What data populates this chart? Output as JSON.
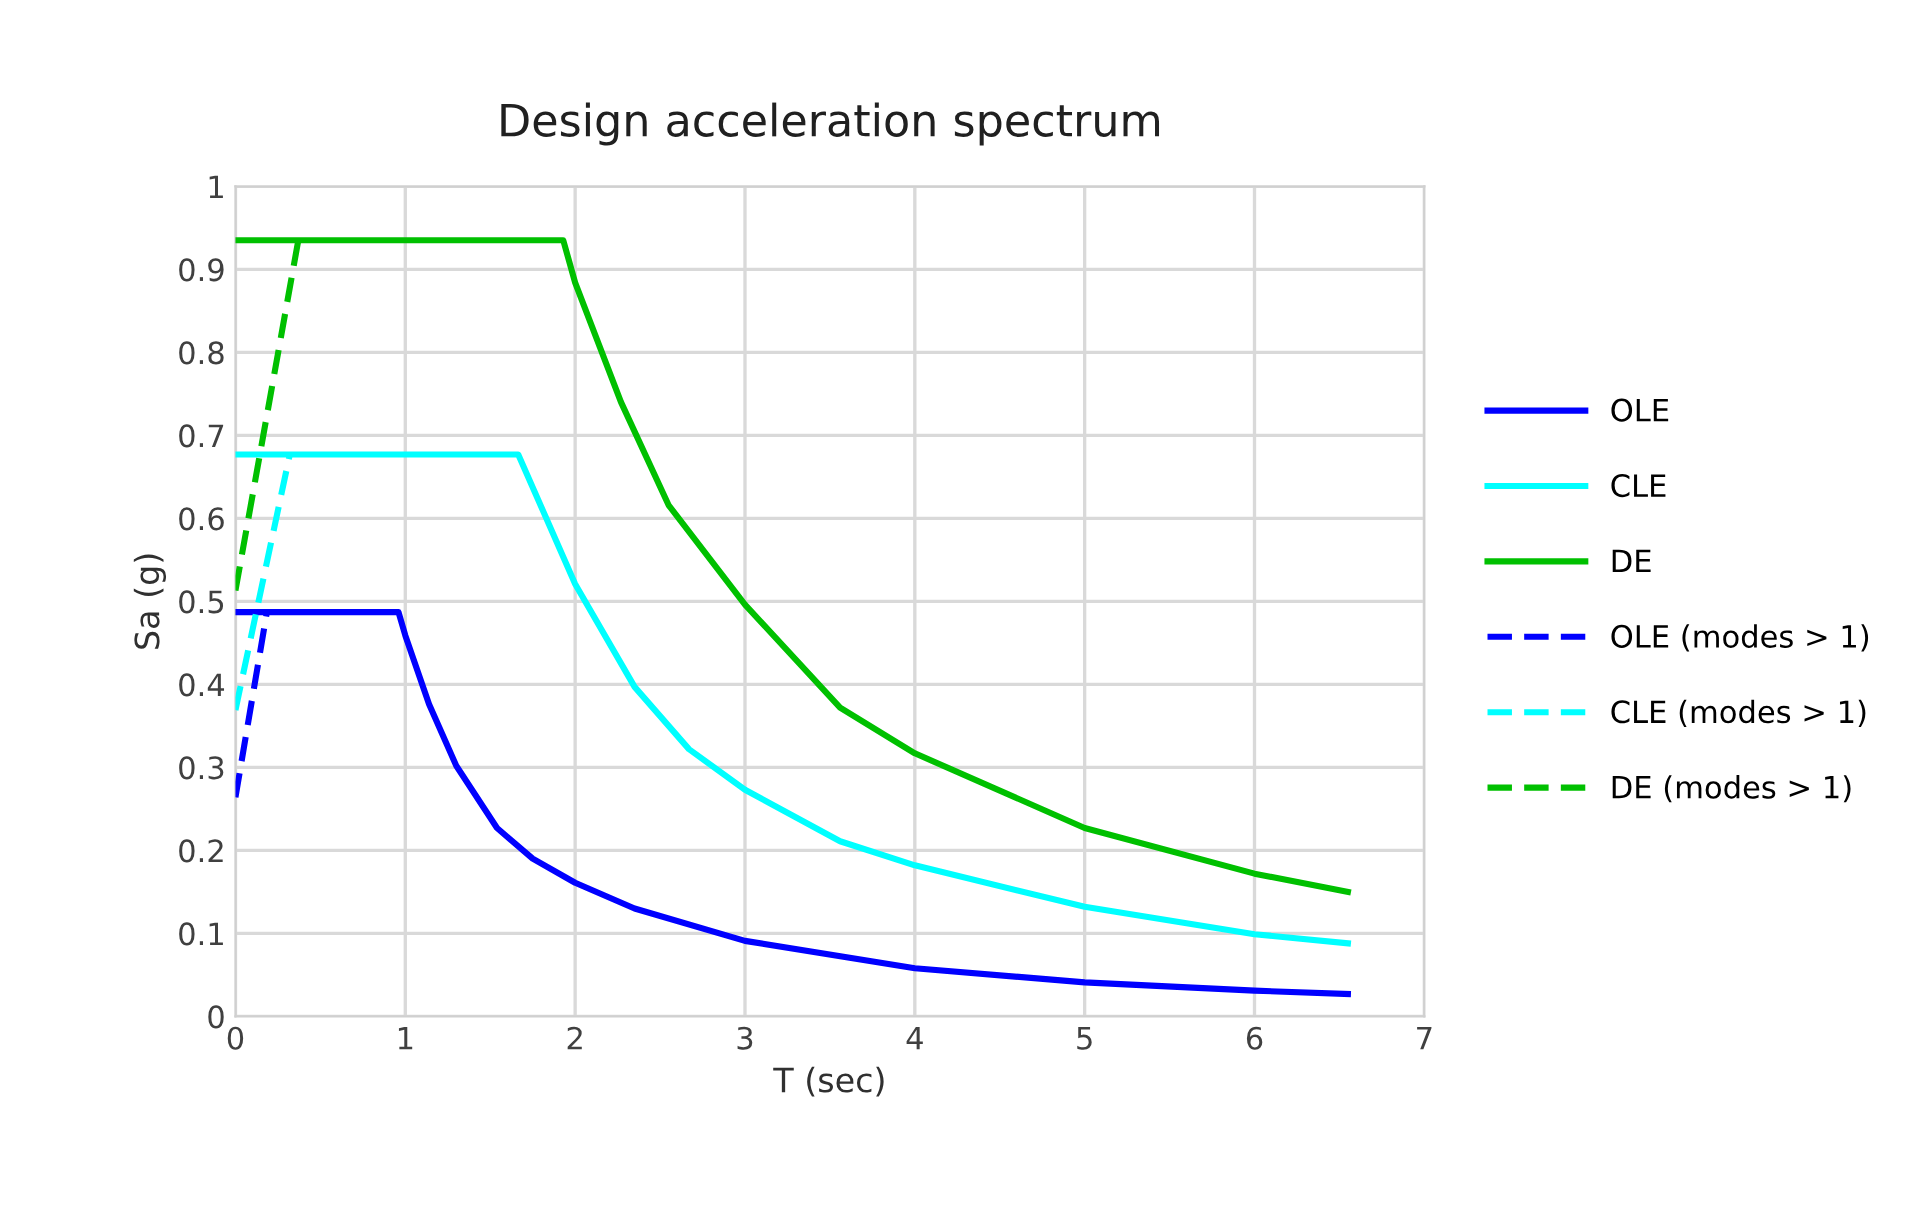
{
  "chart_data": {
    "type": "line",
    "title": "Design acceleration spectrum",
    "xlabel": "T (sec)",
    "ylabel": "Sa (g)",
    "xlim": [
      0,
      7
    ],
    "xticks": [
      0,
      1,
      2,
      3,
      4,
      5,
      6,
      7
    ],
    "ylim": [
      0,
      1
    ],
    "yticks": [
      0,
      0.1,
      0.2,
      0.3,
      0.4,
      0.5,
      0.6,
      0.7,
      0.8,
      0.9,
      1
    ],
    "grid": true,
    "legend": "right",
    "marker": "none",
    "series": [
      {
        "name": "OLE",
        "color": "#0000ff",
        "line_style": "solid",
        "x": [
          0,
          0.96,
          1,
          1.14,
          1.3,
          1.54,
          1.75,
          2,
          2.35,
          3,
          4,
          5,
          6,
          6.55
        ],
        "values": [
          0.487,
          0.487,
          0.459,
          0.376,
          0.302,
          0.227,
          0.19,
          0.161,
          0.13,
          0.091,
          0.058,
          0.041,
          0.031,
          0.027
        ]
      },
      {
        "name": "CLE",
        "color": "#00ffff",
        "line_style": "solid",
        "x": [
          0,
          1.665,
          2,
          2.35,
          2.67,
          3,
          3.56,
          4,
          5,
          6,
          6.55
        ],
        "values": [
          0.677,
          0.677,
          0.521,
          0.397,
          0.322,
          0.273,
          0.211,
          0.182,
          0.132,
          0.099,
          0.088
        ]
      },
      {
        "name": "DE",
        "color": "#00c000",
        "line_style": "solid",
        "x": [
          0,
          1.93,
          2,
          2.27,
          2.55,
          3,
          3.56,
          4,
          5,
          6,
          6.55
        ],
        "values": [
          0.935,
          0.935,
          0.884,
          0.74,
          0.616,
          0.496,
          0.372,
          0.317,
          0.227,
          0.172,
          0.15
        ]
      },
      {
        "name": "OLE (modes > 1)",
        "color": "#0000ff",
        "line_style": "dashed",
        "x": [
          0,
          0.185
        ],
        "values": [
          0.264,
          0.487
        ]
      },
      {
        "name": "CLE (modes > 1)",
        "color": "#00ffff",
        "line_style": "dashed",
        "x": [
          0,
          0.32
        ],
        "values": [
          0.369,
          0.677
        ]
      },
      {
        "name": "DE (modes > 1)",
        "color": "#00c000",
        "line_style": "dashed",
        "x": [
          0,
          0.37
        ],
        "values": [
          0.513,
          0.935
        ]
      }
    ]
  }
}
